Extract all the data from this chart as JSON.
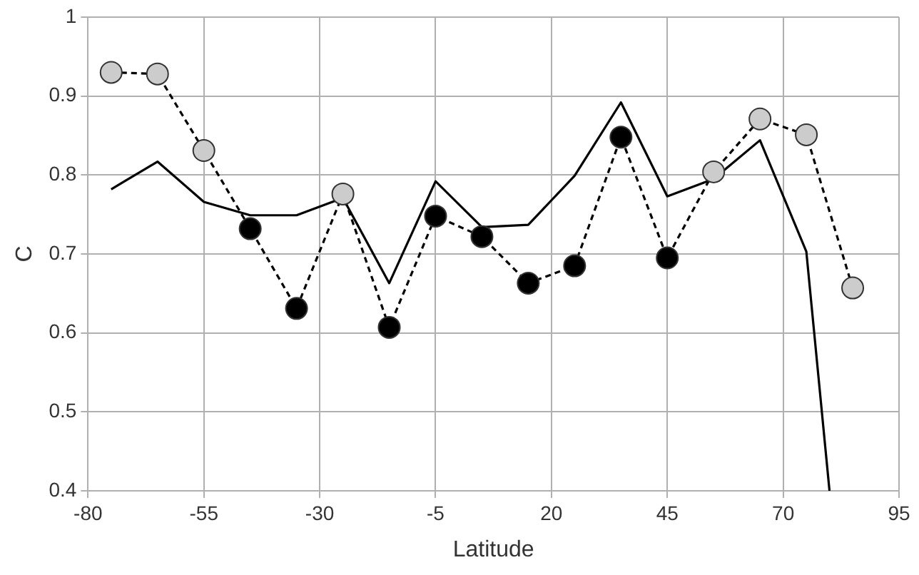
{
  "chart_data": {
    "type": "line",
    "xlabel": "Latitude",
    "ylabel": "C",
    "x": [
      -75,
      -65,
      -55,
      -45,
      -35,
      -25,
      -15,
      -5,
      5,
      15,
      25,
      35,
      45,
      55,
      65,
      75,
      85
    ],
    "series": [
      {
        "color": "#000000",
        "marker": "circle",
        "line_style": "dashed",
        "values": [
          0.93,
          0.928,
          0.831,
          0.732,
          0.631,
          0.776,
          0.607,
          0.748,
          0.722,
          0.663,
          0.685,
          0.848,
          0.695,
          0.804,
          0.871,
          0.851,
          0.657
        ],
        "colors": [
          "#cccccc",
          "#cccccc",
          "#cccccc",
          "#000000",
          "#000000",
          "#cccccc",
          "#000000",
          "#000000",
          "#000000",
          "#000000",
          "#000000",
          "#000000",
          "#000000",
          "#cccccc",
          "#cccccc",
          "#cccccc",
          "#cccccc"
        ]
      },
      {
        "color": "#000000",
        "marker": "none",
        "line_style": "solid",
        "x": [
          -75,
          -65,
          -55,
          -45,
          -35,
          -25,
          -15,
          -5,
          5,
          15,
          25,
          35,
          45,
          55,
          65,
          75,
          80
        ],
        "values": [
          0.782,
          0.817,
          0.766,
          0.749,
          0.749,
          0.771,
          0.663,
          0.792,
          0.734,
          0.737,
          0.799,
          0.892,
          0.773,
          0.795,
          0.844,
          0.703,
          0.4
        ]
      }
    ],
    "xlim": [
      -80,
      95
    ],
    "xticks": [
      -80,
      -55,
      -30,
      -5,
      20,
      45,
      70,
      95
    ],
    "ylim": [
      0.4,
      1
    ],
    "yticks": [
      0.4,
      0.5,
      0.6,
      0.7,
      0.8,
      0.9,
      1
    ],
    "grid": true,
    "legend": false
  }
}
